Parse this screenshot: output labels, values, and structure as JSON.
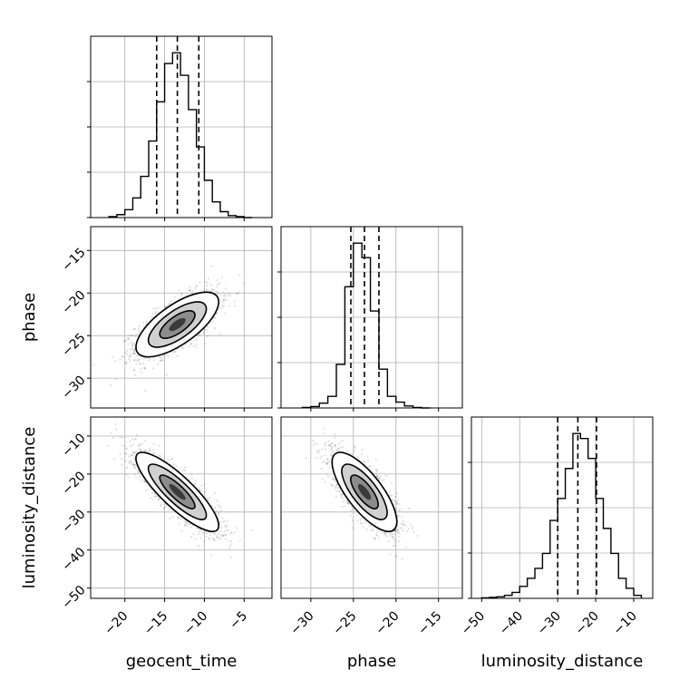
{
  "chart_data": {
    "type": "corner",
    "parameters": [
      "geocent_time",
      "phase",
      "luminosity_distance"
    ],
    "grid": true,
    "ranges": {
      "geocent_time": [
        -24.3,
        -1.5
      ],
      "phase": [
        -33.5,
        -12.2
      ],
      "luminosity_distance": [
        -52.7,
        -5.0
      ]
    },
    "ticks": {
      "geocent_time": [
        "-20",
        "-15",
        "-10",
        "-5"
      ],
      "phase": [
        "-30",
        "-25",
        "-20",
        "-15"
      ],
      "luminosity_distance": [
        "-50",
        "-40",
        "-30",
        "-20",
        "-10"
      ]
    },
    "quantiles": {
      "geocent_time": [
        -16.0,
        -13.4,
        -10.7
      ],
      "phase": [
        -25.3,
        -23.7,
        -22.0
      ],
      "luminosity_distance": [
        -30.0,
        -24.7,
        -19.8
      ]
    },
    "histograms": {
      "geocent_time": {
        "edges": [
          -22,
          -21,
          -20,
          -19,
          -18,
          -17,
          -16,
          -15,
          -14,
          -13,
          -12,
          -11,
          -10,
          -9,
          -8,
          -7,
          -6,
          -5,
          -4
        ],
        "counts": [
          1,
          3,
          8,
          20,
          42,
          78,
          118,
          157,
          168,
          145,
          110,
          72,
          38,
          16,
          6,
          2,
          1,
          0
        ]
      },
      "phase": {
        "edges": [
          -31,
          -30,
          -29,
          -28,
          -27,
          -26,
          -25,
          -24,
          -23,
          -22,
          -21,
          -20,
          -19,
          -18,
          -17,
          -16
        ],
        "counts": [
          0.5,
          1.5,
          5,
          12,
          45,
          125,
          170,
          155,
          100,
          40,
          12,
          6,
          2,
          0.5,
          0
        ]
      },
      "luminosity_distance": {
        "edges": [
          -50,
          -48,
          -46,
          -44,
          -42,
          -40,
          -38,
          -36,
          -34,
          -32,
          -30,
          -28,
          -26,
          -24,
          -22,
          -20,
          -18,
          -16,
          -14,
          -12,
          -10,
          -8
        ],
        "counts": [
          0.5,
          1,
          1.5,
          3,
          6,
          12,
          20,
          30,
          45,
          78,
          100,
          130,
          165,
          160,
          140,
          100,
          70,
          45,
          20,
          10,
          3
        ]
      }
    },
    "scatter_pairs": [
      {
        "x": "geocent_time",
        "y": "phase",
        "center": [
          -13.4,
          -23.7
        ],
        "sd": [
          2.6,
          1.9
        ],
        "corr": 0.7
      },
      {
        "x": "geocent_time",
        "y": "luminosity_distance",
        "center": [
          -13.4,
          -24.7
        ],
        "sd": [
          2.6,
          5.2
        ],
        "corr": -0.85
      },
      {
        "x": "phase",
        "y": "luminosity_distance",
        "center": [
          -23.7,
          -24.7
        ],
        "sd": [
          1.9,
          5.2
        ],
        "corr": -0.75
      }
    ]
  }
}
